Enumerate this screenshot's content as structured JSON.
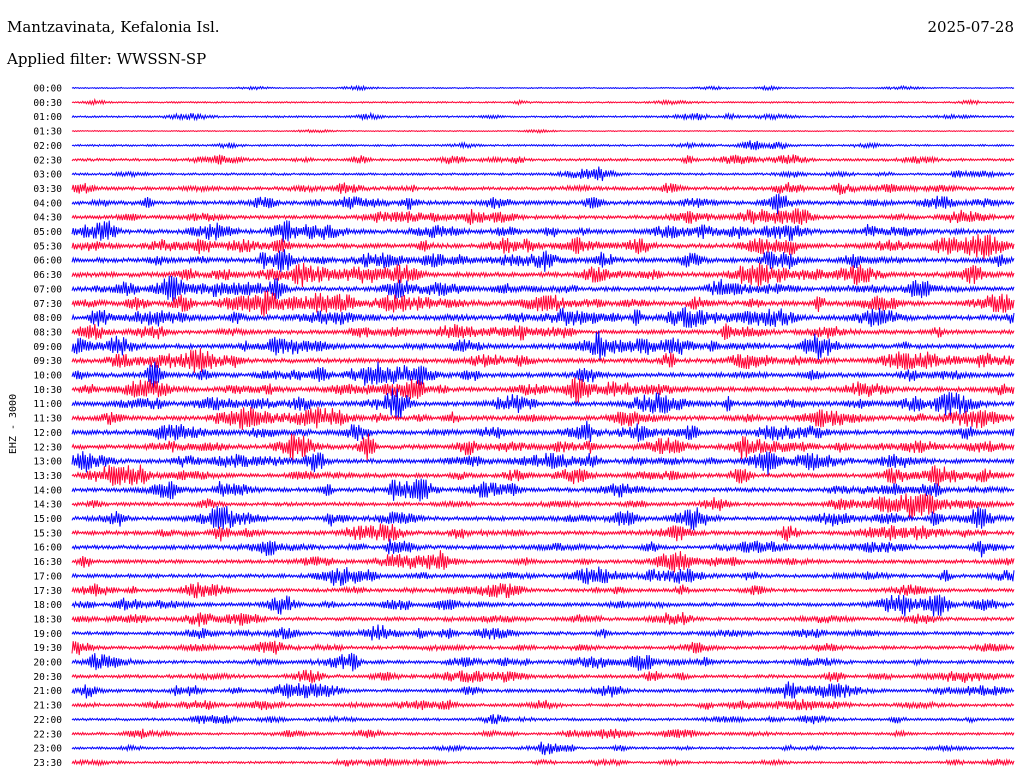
{
  "header": {
    "station": "Mantzavinata, Kefalonia Isl.",
    "date": "2025-07-28",
    "filter": "Applied filter: WWSSN-SP"
  },
  "chart_data": {
    "type": "line",
    "title": "Mantzavinata, Kefalonia Isl.",
    "ylabel": "EHZ - 3000",
    "row_labels": [
      "00:00",
      "00:30",
      "01:00",
      "01:30",
      "02:00",
      "02:30",
      "03:00",
      "03:30",
      "04:00",
      "04:30",
      "05:00",
      "05:30",
      "06:00",
      "06:30",
      "07:00",
      "07:30",
      "08:00",
      "08:30",
      "09:00",
      "09:30",
      "10:00",
      "10:30",
      "11:00",
      "11:30",
      "12:00",
      "12:30",
      "13:00",
      "13:30",
      "14:00",
      "14:30",
      "15:00",
      "15:30",
      "16:00",
      "16:30",
      "17:00",
      "17:30",
      "18:00",
      "18:30",
      "19:00",
      "19:30",
      "20:00",
      "20:30",
      "21:00",
      "21:30",
      "22:00",
      "22:30",
      "23:00",
      "23:30"
    ],
    "row_activity": [
      0.5,
      1,
      1.5,
      0.3,
      1.5,
      2.5,
      2,
      3.5,
      4.5,
      4,
      5,
      5,
      5.5,
      5.5,
      5,
      5.5,
      5.5,
      4.5,
      5,
      5,
      5,
      5,
      5,
      5,
      5,
      5,
      5,
      4.5,
      4.5,
      4,
      4.5,
      4.5,
      4.5,
      4,
      4,
      3.5,
      4,
      3.5,
      3.5,
      3.5,
      3.5,
      3.5,
      3.5,
      3,
      2.5,
      2.5,
      2,
      2
    ],
    "colors": {
      "even_rows": "#0000ff",
      "odd_rows": "#ff0033"
    }
  }
}
